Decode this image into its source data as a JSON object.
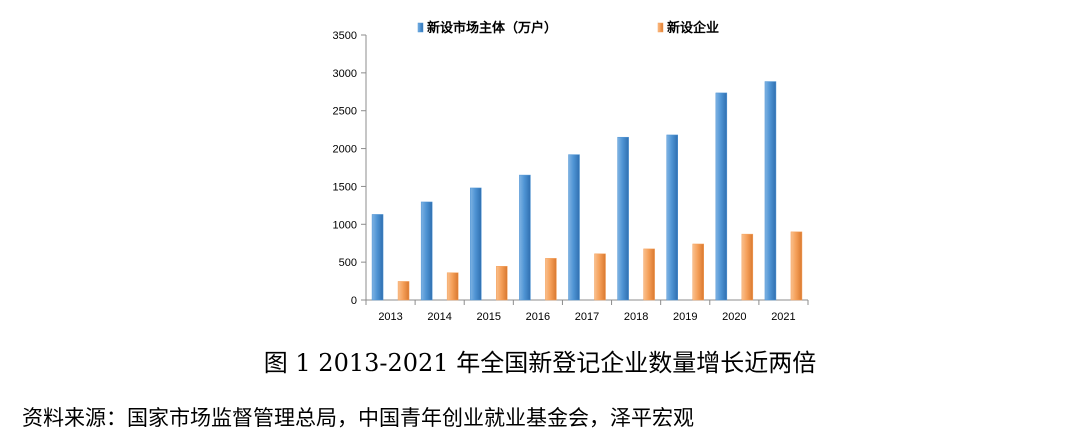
{
  "chart_data": {
    "type": "bar",
    "categories": [
      "2013",
      "2014",
      "2015",
      "2016",
      "2017",
      "2018",
      "2019",
      "2020",
      "2021"
    ],
    "series": [
      {
        "name": "新设市场主体（万户）",
        "color": "#4f94d4",
        "values": [
          1130,
          1295,
          1480,
          1650,
          1920,
          2150,
          2180,
          2735,
          2885
        ]
      },
      {
        "name": "新设企业",
        "color": "#f5a05a",
        "values": [
          245,
          360,
          445,
          550,
          610,
          675,
          740,
          870,
          900
        ]
      }
    ],
    "ylim": [
      0,
      3500
    ],
    "yticks": [
      0,
      500,
      1000,
      1500,
      2000,
      2500,
      3000,
      3500
    ],
    "legend_position": "top",
    "grid": false
  },
  "caption": "图 1  2013-2021 年全国新登记企业数量增长近两倍",
  "source": "资料来源：国家市场监督管理总局，中国青年创业就业基金会，泽平宏观"
}
